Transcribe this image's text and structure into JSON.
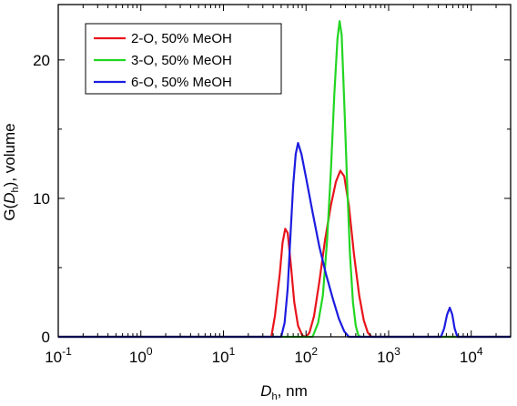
{
  "chart_data": {
    "type": "line",
    "xscale": "log",
    "xlim": [
      0.1,
      30000
    ],
    "ylim": [
      0,
      24
    ],
    "xlabel": {
      "main": "D",
      "sub": "h",
      "suffix": ", nm"
    },
    "ylabel": {
      "prefix": "G(",
      "main": "D",
      "sub": "h",
      "suffix": "), volume"
    },
    "x_ticks": [
      {
        "value": 0.1,
        "base": "10",
        "exp": "-1"
      },
      {
        "value": 1,
        "base": "10",
        "exp": "0"
      },
      {
        "value": 10,
        "base": "10",
        "exp": "1"
      },
      {
        "value": 100,
        "base": "10",
        "exp": "2"
      },
      {
        "value": 1000,
        "base": "10",
        "exp": "3"
      },
      {
        "value": 10000,
        "base": "10",
        "exp": "4"
      }
    ],
    "y_ticks": [
      {
        "value": 0,
        "label": "0"
      },
      {
        "value": 10,
        "label": "10"
      },
      {
        "value": 20,
        "label": "20"
      }
    ],
    "legend": {
      "position": "top-left"
    },
    "series": [
      {
        "name": "2-O, 50% MeOH",
        "color": "#e8141b",
        "points": [
          [
            0.1,
            0
          ],
          [
            38,
            0
          ],
          [
            42,
            1.5
          ],
          [
            48,
            4.5
          ],
          [
            52,
            6.8
          ],
          [
            56,
            7.8
          ],
          [
            60,
            7.5
          ],
          [
            66,
            5.0
          ],
          [
            72,
            2.5
          ],
          [
            80,
            0.8
          ],
          [
            90,
            0.1
          ],
          [
            100,
            0
          ],
          [
            110,
            0.3
          ],
          [
            125,
            1.5
          ],
          [
            145,
            4.0
          ],
          [
            170,
            7.0
          ],
          [
            200,
            9.5
          ],
          [
            230,
            11.2
          ],
          [
            260,
            12.0
          ],
          [
            290,
            11.6
          ],
          [
            330,
            9.5
          ],
          [
            380,
            6.0
          ],
          [
            440,
            3.0
          ],
          [
            500,
            1.2
          ],
          [
            560,
            0.3
          ],
          [
            620,
            0
          ],
          [
            30000,
            0
          ]
        ]
      },
      {
        "name": "3-O, 50% MeOH",
        "color": "#22d622",
        "points": [
          [
            0.1,
            0
          ],
          [
            120,
            0
          ],
          [
            140,
            1.0
          ],
          [
            160,
            3.0
          ],
          [
            180,
            7.0
          ],
          [
            200,
            12.0
          ],
          [
            220,
            17.5
          ],
          [
            240,
            21.5
          ],
          [
            255,
            22.8
          ],
          [
            270,
            21.8
          ],
          [
            290,
            17.0
          ],
          [
            315,
            11.0
          ],
          [
            340,
            6.0
          ],
          [
            370,
            2.5
          ],
          [
            400,
            0.8
          ],
          [
            430,
            0.1
          ],
          [
            460,
            0
          ],
          [
            30000,
            0
          ]
        ]
      },
      {
        "name": "6-O, 50% MeOH",
        "color": "#1c1ce0",
        "points": [
          [
            0.1,
            0
          ],
          [
            50,
            0
          ],
          [
            55,
            1.0
          ],
          [
            60,
            3.5
          ],
          [
            65,
            7.5
          ],
          [
            70,
            11.0
          ],
          [
            75,
            13.2
          ],
          [
            80,
            14.0
          ],
          [
            88,
            13.2
          ],
          [
            100,
            11.5
          ],
          [
            120,
            9.0
          ],
          [
            145,
            6.5
          ],
          [
            175,
            4.5
          ],
          [
            210,
            2.8
          ],
          [
            250,
            1.3
          ],
          [
            290,
            0.4
          ],
          [
            330,
            0
          ],
          [
            4300,
            0
          ],
          [
            4700,
            0.6
          ],
          [
            5100,
            1.6
          ],
          [
            5500,
            2.1
          ],
          [
            5900,
            1.6
          ],
          [
            6300,
            0.6
          ],
          [
            6800,
            0
          ],
          [
            30000,
            0
          ]
        ]
      }
    ]
  }
}
